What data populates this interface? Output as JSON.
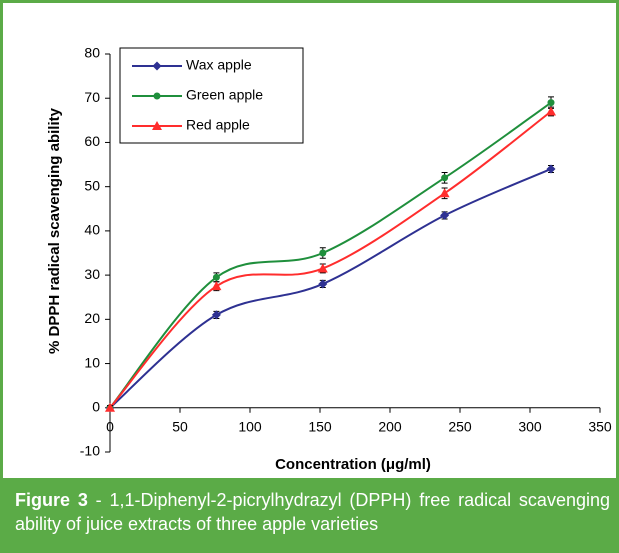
{
  "chart_data": {
    "type": "line",
    "x_label": "Concentration (μg/ml)",
    "y_label": "% DPPH radical scavenging ability",
    "x": [
      0,
      76,
      152,
      239,
      315
    ],
    "series": [
      {
        "name": "Wax apple",
        "color": "#2e3192",
        "marker": "diamond",
        "values": [
          0,
          21,
          28,
          43.5,
          54
        ],
        "errors": [
          0.5,
          0.8,
          0.8,
          0.8,
          0.8
        ]
      },
      {
        "name": "Green apple",
        "color": "#1f8f3c",
        "marker": "circle",
        "values": [
          0,
          29.5,
          35,
          52,
          69
        ],
        "errors": [
          0.5,
          1,
          1.2,
          1.2,
          1.3
        ]
      },
      {
        "name": "Red apple",
        "color": "#ff2d2d",
        "marker": "triangle",
        "values": [
          0,
          27.5,
          31.5,
          48.5,
          67
        ],
        "errors": [
          0.5,
          1,
          1,
          1.2,
          1
        ]
      }
    ],
    "xlim": [
      0,
      350
    ],
    "xticks": [
      0,
      50,
      100,
      150,
      200,
      250,
      300,
      350
    ],
    "ylim": [
      -10,
      80
    ],
    "yticks": [
      -10,
      0,
      10,
      20,
      30,
      40,
      50,
      60,
      70,
      80
    ],
    "smooth": true,
    "legend": "upper left",
    "caption_label": "Figure 3",
    "caption": " - 1,1-Diphenyl-2-picrylhydrazyl (DPPH) free radical scavenging ability of juice extracts of three apple varieties"
  }
}
